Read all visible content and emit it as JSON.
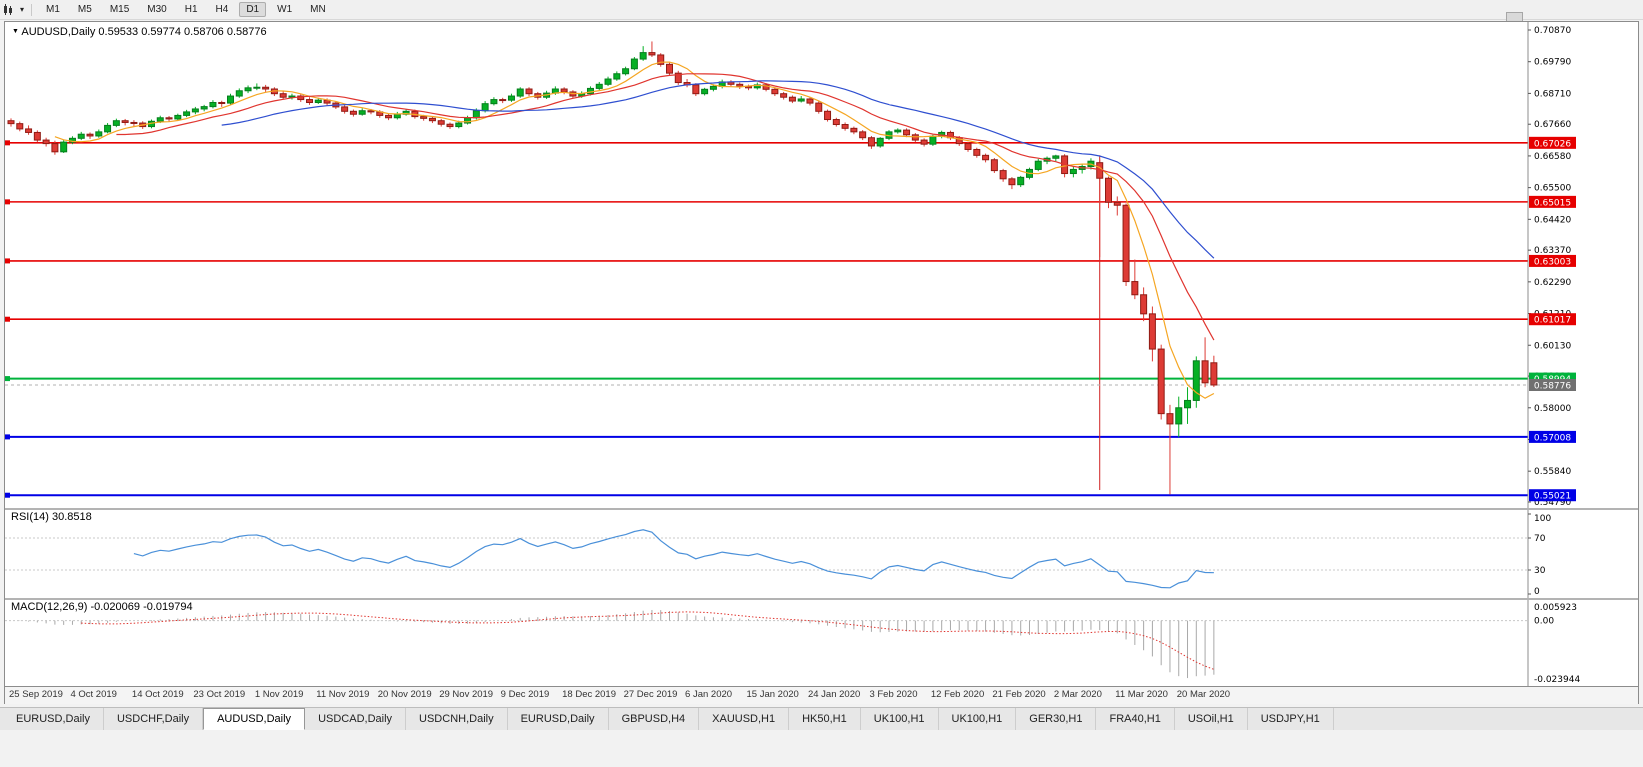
{
  "toolbar": {
    "timeframes": [
      "M1",
      "M5",
      "M15",
      "M30",
      "H1",
      "H4",
      "D1",
      "W1",
      "MN"
    ],
    "active_timeframe": "D1"
  },
  "tabs": {
    "items": [
      "EURUSD,Daily",
      "USDCHF,Daily",
      "AUDUSD,Daily",
      "USDCAD,Daily",
      "USDCNH,Daily",
      "EURUSD,Daily",
      "GBPUSD,H4",
      "XAUUSD,H1",
      "HK50,H1",
      "UK100,H1",
      "UK100,H1",
      "GER30,H1",
      "FRA40,H1",
      "USOil,H1",
      "USDJPY,H1"
    ],
    "active_index": 2
  },
  "chart_data": {
    "type": "candlestick",
    "symbol": "AUDUSD",
    "timeframe": "Daily",
    "title": "AUDUSD,Daily 0.59533 0.59774 0.58706 0.58776",
    "ohlc_current": {
      "open": 0.59533,
      "high": 0.59774,
      "low": 0.58706,
      "close": 0.58776
    },
    "y_axis": {
      "top": 0.7087,
      "bottom": 0.5479,
      "labels": [
        "0.70870",
        "0.69790",
        "0.68710",
        "0.67660",
        "0.66580",
        "0.65500",
        "0.64420",
        "0.63370",
        "0.62290",
        "0.61210",
        "0.60130",
        "0.59080",
        "0.58000",
        "0.56920",
        "0.55840",
        "0.54790"
      ]
    },
    "x_labels": [
      "25 Sep 2019",
      "4 Oct 2019",
      "14 Oct 2019",
      "23 Oct 2019",
      "1 Nov 2019",
      "11 Nov 2019",
      "20 Nov 2019",
      "29 Nov 2019",
      "9 Dec 2019",
      "18 Dec 2019",
      "27 Dec 2019",
      "6 Jan 2020",
      "15 Jan 2020",
      "24 Jan 2020",
      "3 Feb 2020",
      "12 Feb 2020",
      "21 Feb 2020",
      "2 Mar 2020",
      "11 Mar 2020",
      "20 Mar 2020"
    ],
    "x_label_step": 7,
    "colors": {
      "up": "#06b025",
      "up_border": "#067d1d",
      "down": "#dd3b35",
      "down_border": "#8f1b14"
    },
    "levels": [
      {
        "price": 0.67026,
        "label": "0.67026",
        "color": "#e60000",
        "width": 1.6
      },
      {
        "price": 0.65015,
        "label": "0.65015",
        "color": "#e60000",
        "width": 1.6
      },
      {
        "price": 0.63003,
        "label": "0.63003",
        "color": "#e60000",
        "width": 1.6
      },
      {
        "price": 0.61017,
        "label": "0.61017",
        "color": "#e60000",
        "width": 1.6
      },
      {
        "price": 0.58994,
        "label": "0.58994",
        "color": "#00b33c",
        "width": 2
      },
      {
        "price": 0.57008,
        "label": "0.57008",
        "color": "#0000e6",
        "width": 2
      },
      {
        "price": 0.55021,
        "label": "0.55021",
        "color": "#0000e6",
        "width": 2
      }
    ],
    "current": {
      "price": 0.58776,
      "label": "0.58776",
      "color": "#707070"
    },
    "vline": {
      "index": 124,
      "from": 0.666,
      "to": 0.552,
      "color": "#d02020"
    },
    "moving_averages": [
      {
        "period": 6,
        "color": "#f5a623"
      },
      {
        "period": 13,
        "color": "#e0352f"
      },
      {
        "period": 25,
        "color": "#2f4fd0"
      }
    ],
    "rsi": {
      "label": "RSI(14) 30.8518",
      "period": 14,
      "scale_labels": [
        "100",
        "70",
        "30",
        "0"
      ],
      "guide_levels": [
        70,
        30
      ],
      "color": "#4a90d9"
    },
    "macd": {
      "label": "MACD(12,26,9) -0.020069 -0.019794",
      "fast": 12,
      "slow": 26,
      "signal": 9,
      "scale": {
        "top": 0.005923,
        "top_label": "0.005923",
        "zero_label": "0.00",
        "bottom": -0.023944,
        "bottom_label": "-0.023944"
      },
      "hist_color": "#a8a8a8",
      "signal_color": "#e0352f"
    },
    "candles": [
      [
        0.6778,
        0.6786,
        0.6758,
        0.6768
      ],
      [
        0.6768,
        0.6775,
        0.6742,
        0.675
      ],
      [
        0.675,
        0.6762,
        0.673,
        0.6738
      ],
      [
        0.6738,
        0.6745,
        0.6705,
        0.6712
      ],
      [
        0.6712,
        0.672,
        0.669,
        0.67
      ],
      [
        0.67,
        0.671,
        0.6662,
        0.6672
      ],
      [
        0.6672,
        0.6712,
        0.6668,
        0.6705
      ],
      [
        0.6705,
        0.6725,
        0.6698,
        0.6718
      ],
      [
        0.6718,
        0.674,
        0.6712,
        0.6732
      ],
      [
        0.6732,
        0.6738,
        0.6716,
        0.6726
      ],
      [
        0.6726,
        0.6748,
        0.672,
        0.674
      ],
      [
        0.674,
        0.677,
        0.6735,
        0.6762
      ],
      [
        0.6762,
        0.6785,
        0.6756,
        0.6778
      ],
      [
        0.6778,
        0.6784,
        0.6762,
        0.6772
      ],
      [
        0.6772,
        0.678,
        0.6758,
        0.677
      ],
      [
        0.677,
        0.6776,
        0.675,
        0.6758
      ],
      [
        0.6758,
        0.6782,
        0.6752,
        0.6776
      ],
      [
        0.6776,
        0.6795,
        0.677,
        0.6788
      ],
      [
        0.6788,
        0.6794,
        0.6775,
        0.6784
      ],
      [
        0.6784,
        0.6802,
        0.6778,
        0.6796
      ],
      [
        0.6796,
        0.6815,
        0.679,
        0.6808
      ],
      [
        0.6808,
        0.6825,
        0.68,
        0.6818
      ],
      [
        0.6818,
        0.6832,
        0.681,
        0.6826
      ],
      [
        0.6826,
        0.6848,
        0.682,
        0.684
      ],
      [
        0.684,
        0.6846,
        0.6825,
        0.6838
      ],
      [
        0.6838,
        0.687,
        0.6832,
        0.6862
      ],
      [
        0.6862,
        0.6888,
        0.6856,
        0.688
      ],
      [
        0.688,
        0.6898,
        0.6872,
        0.689
      ],
      [
        0.689,
        0.6905,
        0.6882,
        0.6892
      ],
      [
        0.6892,
        0.69,
        0.6876,
        0.6886
      ],
      [
        0.6886,
        0.6892,
        0.6862,
        0.687
      ],
      [
        0.687,
        0.6878,
        0.685,
        0.6858
      ],
      [
        0.6858,
        0.687,
        0.685,
        0.6862
      ],
      [
        0.6862,
        0.6868,
        0.6842,
        0.685
      ],
      [
        0.685,
        0.6858,
        0.6832,
        0.684
      ],
      [
        0.684,
        0.6856,
        0.6835,
        0.6848
      ],
      [
        0.6848,
        0.6854,
        0.683,
        0.6838
      ],
      [
        0.6838,
        0.6844,
        0.6818,
        0.6825
      ],
      [
        0.6825,
        0.6832,
        0.6802,
        0.681
      ],
      [
        0.681,
        0.6816,
        0.6792,
        0.68
      ],
      [
        0.68,
        0.682,
        0.6795,
        0.6812
      ],
      [
        0.6812,
        0.6818,
        0.68,
        0.6808
      ],
      [
        0.6808,
        0.6814,
        0.6788,
        0.6796
      ],
      [
        0.6796,
        0.6802,
        0.678,
        0.6788
      ],
      [
        0.6788,
        0.6808,
        0.6782,
        0.68
      ],
      [
        0.68,
        0.6818,
        0.6795,
        0.681
      ],
      [
        0.681,
        0.6816,
        0.6785,
        0.6792
      ],
      [
        0.6792,
        0.6798,
        0.6778,
        0.6786
      ],
      [
        0.6786,
        0.6792,
        0.677,
        0.6778
      ],
      [
        0.6778,
        0.6784,
        0.6758,
        0.6766
      ],
      [
        0.6766,
        0.6772,
        0.675,
        0.6758
      ],
      [
        0.6758,
        0.6778,
        0.6752,
        0.677
      ],
      [
        0.677,
        0.6795,
        0.6765,
        0.6788
      ],
      [
        0.6788,
        0.682,
        0.6782,
        0.6812
      ],
      [
        0.6812,
        0.6845,
        0.6806,
        0.6836
      ],
      [
        0.6836,
        0.6858,
        0.683,
        0.685
      ],
      [
        0.685,
        0.6856,
        0.6838,
        0.6848
      ],
      [
        0.6848,
        0.687,
        0.6842,
        0.6862
      ],
      [
        0.6862,
        0.6892,
        0.6856,
        0.6886
      ],
      [
        0.6886,
        0.6892,
        0.6862,
        0.687
      ],
      [
        0.687,
        0.6876,
        0.685,
        0.6858
      ],
      [
        0.6858,
        0.688,
        0.6852,
        0.6872
      ],
      [
        0.6872,
        0.6895,
        0.6866,
        0.6886
      ],
      [
        0.6886,
        0.6892,
        0.6868,
        0.6876
      ],
      [
        0.6876,
        0.6882,
        0.6855,
        0.6862
      ],
      [
        0.6862,
        0.6878,
        0.6856,
        0.687
      ],
      [
        0.687,
        0.6895,
        0.6864,
        0.6888
      ],
      [
        0.6888,
        0.691,
        0.6882,
        0.6902
      ],
      [
        0.6902,
        0.6928,
        0.6896,
        0.692
      ],
      [
        0.692,
        0.6946,
        0.6914,
        0.6938
      ],
      [
        0.6938,
        0.6962,
        0.6932,
        0.6955
      ],
      [
        0.6955,
        0.6995,
        0.695,
        0.6988
      ],
      [
        0.6988,
        0.7032,
        0.6982,
        0.701
      ],
      [
        0.701,
        0.7048,
        0.6995,
        0.7002
      ],
      [
        0.7002,
        0.7008,
        0.6962,
        0.697
      ],
      [
        0.697,
        0.6976,
        0.6932,
        0.694
      ],
      [
        0.694,
        0.6948,
        0.69,
        0.6908
      ],
      [
        0.6908,
        0.692,
        0.6892,
        0.69
      ],
      [
        0.69,
        0.6906,
        0.6862,
        0.687
      ],
      [
        0.687,
        0.689,
        0.6864,
        0.6885
      ],
      [
        0.6885,
        0.6902,
        0.6878,
        0.6895
      ],
      [
        0.6895,
        0.6918,
        0.6888,
        0.691
      ],
      [
        0.691,
        0.6916,
        0.6895,
        0.6902
      ],
      [
        0.6902,
        0.6908,
        0.6886,
        0.6895
      ],
      [
        0.6895,
        0.6901,
        0.6882,
        0.689
      ],
      [
        0.689,
        0.6908,
        0.6884,
        0.69
      ],
      [
        0.69,
        0.6906,
        0.6878,
        0.6885
      ],
      [
        0.6885,
        0.6891,
        0.6862,
        0.687
      ],
      [
        0.687,
        0.6876,
        0.685,
        0.6858
      ],
      [
        0.6858,
        0.6864,
        0.6838,
        0.6845
      ],
      [
        0.6845,
        0.6862,
        0.684,
        0.6852
      ],
      [
        0.6852,
        0.6858,
        0.683,
        0.6838
      ],
      [
        0.6838,
        0.6844,
        0.6802,
        0.681
      ],
      [
        0.681,
        0.6816,
        0.6775,
        0.6782
      ],
      [
        0.6782,
        0.6788,
        0.6758,
        0.6765
      ],
      [
        0.6765,
        0.6772,
        0.6744,
        0.6752
      ],
      [
        0.6752,
        0.6758,
        0.6732,
        0.674
      ],
      [
        0.674,
        0.6746,
        0.6712,
        0.672
      ],
      [
        0.672,
        0.6726,
        0.6682,
        0.6692
      ],
      [
        0.6692,
        0.6722,
        0.6686,
        0.6718
      ],
      [
        0.6718,
        0.6746,
        0.6712,
        0.674
      ],
      [
        0.674,
        0.6752,
        0.6734,
        0.6746
      ],
      [
        0.6746,
        0.6752,
        0.6722,
        0.673
      ],
      [
        0.673,
        0.6736,
        0.6705,
        0.6712
      ],
      [
        0.6712,
        0.6718,
        0.669,
        0.6698
      ],
      [
        0.6698,
        0.673,
        0.6692,
        0.6725
      ],
      [
        0.6725,
        0.6744,
        0.6718,
        0.6738
      ],
      [
        0.6738,
        0.6744,
        0.6712,
        0.672
      ],
      [
        0.672,
        0.6726,
        0.6692,
        0.67
      ],
      [
        0.67,
        0.6706,
        0.6672,
        0.668
      ],
      [
        0.668,
        0.6686,
        0.6652,
        0.666
      ],
      [
        0.666,
        0.6666,
        0.6636,
        0.6645
      ],
      [
        0.6645,
        0.6651,
        0.66,
        0.6608
      ],
      [
        0.6608,
        0.6614,
        0.657,
        0.658
      ],
      [
        0.658,
        0.6586,
        0.6545,
        0.656
      ],
      [
        0.656,
        0.659,
        0.6552,
        0.6585
      ],
      [
        0.6585,
        0.6618,
        0.6578,
        0.6612
      ],
      [
        0.6612,
        0.6648,
        0.6606,
        0.664
      ],
      [
        0.664,
        0.6656,
        0.663,
        0.665
      ],
      [
        0.665,
        0.6662,
        0.664,
        0.6658
      ],
      [
        0.6658,
        0.6664,
        0.6585,
        0.6598
      ],
      [
        0.6598,
        0.6622,
        0.6585,
        0.6612
      ],
      [
        0.6612,
        0.663,
        0.6598,
        0.6622
      ],
      [
        0.6622,
        0.665,
        0.6612,
        0.664
      ],
      [
        0.6635,
        0.6645,
        0.6313,
        0.6582
      ],
      [
        0.6582,
        0.6588,
        0.648,
        0.65
      ],
      [
        0.65,
        0.652,
        0.6455,
        0.649
      ],
      [
        0.649,
        0.6496,
        0.6215,
        0.623
      ],
      [
        0.623,
        0.6305,
        0.617,
        0.6185
      ],
      [
        0.6185,
        0.621,
        0.6095,
        0.612
      ],
      [
        0.612,
        0.6145,
        0.5958,
        0.6
      ],
      [
        0.6,
        0.6015,
        0.576,
        0.578
      ],
      [
        0.578,
        0.581,
        0.5505,
        0.5745
      ],
      [
        0.5745,
        0.5838,
        0.57,
        0.58
      ],
      [
        0.58,
        0.587,
        0.5745,
        0.5825
      ],
      [
        0.5825,
        0.5975,
        0.58,
        0.596
      ],
      [
        0.596,
        0.604,
        0.587,
        0.5885
      ],
      [
        0.59533,
        0.59774,
        0.58706,
        0.58776
      ]
    ]
  }
}
